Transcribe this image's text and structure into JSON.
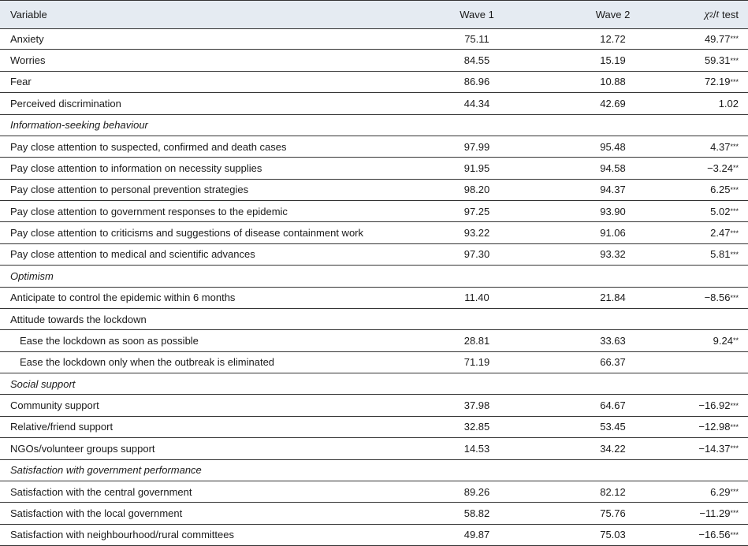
{
  "header": {
    "columns": [
      "Variable",
      "Wave 1",
      "Wave 2"
    ],
    "test_column": {
      "symbol": "χ",
      "power": "2",
      "slash": "/",
      "t": "t",
      "rest": " test"
    }
  },
  "rows": [
    {
      "label": "Anxiety",
      "wave1": "75.11",
      "wave2": "12.72",
      "test": "49.77",
      "sig": "***"
    },
    {
      "label": "Worries",
      "wave1": "84.55",
      "wave2": "15.19",
      "test": "59.31",
      "sig": "***"
    },
    {
      "label": "Fear",
      "wave1": "86.96",
      "wave2": "10.88",
      "test": "72.19",
      "sig": "***"
    },
    {
      "label": "Perceived discrimination",
      "wave1": "44.34",
      "wave2": "42.69",
      "test": "1.02"
    },
    {
      "label": "Information-seeking behaviour",
      "kind": "section"
    },
    {
      "label": "Pay close attention to suspected, confirmed and death cases",
      "wave1": "97.99",
      "wave2": "95.48",
      "test": "4.37",
      "sig": "***"
    },
    {
      "label": "Pay close attention to information on necessity supplies",
      "wave1": "91.95",
      "wave2": "94.58",
      "test": "−3.24",
      "sig": "**"
    },
    {
      "label": "Pay close attention to personal prevention strategies",
      "wave1": "98.20",
      "wave2": "94.37",
      "test": "6.25",
      "sig": "***"
    },
    {
      "label": "Pay close attention to government responses to the epidemic",
      "wave1": "97.25",
      "wave2": "93.90",
      "test": "5.02",
      "sig": "***"
    },
    {
      "label": "Pay close attention to criticisms and suggestions of disease containment work",
      "wave1": "93.22",
      "wave2": "91.06",
      "test": "2.47",
      "sig": "***"
    },
    {
      "label": "Pay close attention to medical and scientific advances",
      "wave1": "97.30",
      "wave2": "93.32",
      "test": "5.81",
      "sig": "***"
    },
    {
      "label": "Optimism",
      "kind": "section"
    },
    {
      "label": "Anticipate to control the epidemic within 6 months",
      "wave1": "11.40",
      "wave2": "21.84",
      "test": "−8.56",
      "sig": "***"
    },
    {
      "label": "Attitude towards the lockdown"
    },
    {
      "label": "Ease the lockdown as soon as possible",
      "kind": "indent",
      "wave1": "28.81",
      "wave2": "33.63",
      "test": "9.24",
      "sig": "**"
    },
    {
      "label": "Ease the lockdown only when the outbreak is eliminated",
      "kind": "indent",
      "wave1": "71.19",
      "wave2": "66.37"
    },
    {
      "label": "Social support",
      "kind": "section"
    },
    {
      "label": "Community support",
      "wave1": "37.98",
      "wave2": "64.67",
      "test": "−16.92",
      "sig": "***"
    },
    {
      "label": "Relative/friend support",
      "wave1": "32.85",
      "wave2": "53.45",
      "test": "−12.98",
      "sig": "***"
    },
    {
      "label": "NGOs/volunteer groups support",
      "wave1": "14.53",
      "wave2": "34.22",
      "test": "−14.37",
      "sig": "***"
    },
    {
      "label": "Satisfaction with government performance",
      "kind": "section"
    },
    {
      "label": "Satisfaction with the central government",
      "wave1": "89.26",
      "wave2": "82.12",
      "test": "6.29",
      "sig": "***"
    },
    {
      "label": "Satisfaction with the local government",
      "wave1": "58.82",
      "wave2": "75.76",
      "test": "−11.29",
      "sig": "***"
    },
    {
      "label": "Satisfaction with neighbourhood/rural committees",
      "wave1": "49.87",
      "wave2": "75.03",
      "test": "−16.56",
      "sig": "***"
    }
  ]
}
